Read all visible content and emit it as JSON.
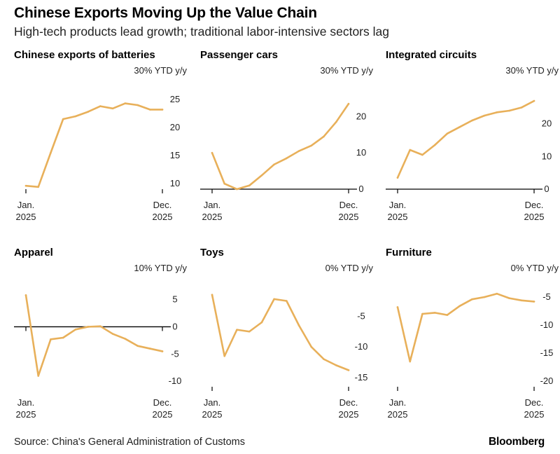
{
  "title": "Chinese Exports Moving Up the Value Chain",
  "subtitle": "High-tech products lead growth; traditional labor-intensive sectors lag",
  "source": "Source: China's General Administration of Customs",
  "brand": "Bloomberg",
  "colors": {
    "line": "#e8b05a",
    "axis": "#000000",
    "tick": "#000000"
  },
  "chart_data": [
    {
      "type": "line",
      "title": "Chinese exports of batteries",
      "ytd_label": "30% YTD y/y",
      "x_labels": [
        "Jan.\n2025",
        "Dec.\n2025"
      ],
      "x": [
        1,
        2,
        3,
        4,
        5,
        6,
        7,
        8,
        9,
        10,
        11,
        12
      ],
      "values": [
        9.6,
        9.4,
        15.5,
        21.5,
        22.0,
        22.8,
        23.8,
        23.4,
        24.3,
        24.0,
        23.2,
        23.2
      ],
      "yticks": [
        10,
        15,
        20,
        25
      ],
      "ylim": [
        9.0,
        26.5
      ],
      "baseline": null
    },
    {
      "type": "line",
      "title": "Passenger cars",
      "ytd_label": "30% YTD y/y",
      "x_labels": [
        "Jan.\n2025",
        "Dec.\n2025"
      ],
      "x": [
        1,
        2,
        3,
        4,
        5,
        6,
        7,
        8,
        9,
        10,
        11,
        12
      ],
      "values": [
        10.0,
        1.5,
        0.0,
        1.0,
        3.8,
        6.8,
        8.5,
        10.5,
        12.0,
        14.5,
        18.5,
        23.5
      ],
      "yticks": [
        0,
        10,
        20
      ],
      "ylim": [
        0,
        27
      ],
      "baseline": 0
    },
    {
      "type": "line",
      "title": "Integrated circuits",
      "ytd_label": "30% YTD y/y",
      "x_labels": [
        "Jan.\n2025",
        "Dec.\n2025"
      ],
      "x": [
        1,
        2,
        3,
        4,
        5,
        6,
        7,
        8,
        9,
        10,
        11,
        12
      ],
      "values": [
        3.5,
        12.0,
        10.5,
        13.5,
        17.0,
        19.0,
        21.0,
        22.5,
        23.5,
        24.0,
        25.0,
        27.0
      ],
      "yticks": [
        0,
        10,
        20
      ],
      "ylim": [
        0,
        30
      ],
      "baseline": 0
    },
    {
      "type": "line",
      "title": "Apparel",
      "ytd_label": "10% YTD y/y",
      "x_labels": [
        "Jan.\n2025",
        "Dec.\n2025"
      ],
      "x": [
        1,
        2,
        3,
        4,
        5,
        6,
        7,
        8,
        9,
        10,
        11,
        12
      ],
      "values": [
        5.8,
        -9.0,
        -2.3,
        -2.0,
        -0.5,
        0.0,
        0.1,
        -1.3,
        -2.2,
        -3.5,
        -4.0,
        -4.5
      ],
      "yticks": [
        -10,
        -5,
        0,
        5
      ],
      "ylim": [
        -11,
        7
      ],
      "baseline": 0
    },
    {
      "type": "line",
      "title": "Toys",
      "ytd_label": "0% YTD y/y",
      "x_labels": [
        "Jan.\n2025",
        "Dec.\n2025"
      ],
      "x": [
        1,
        2,
        3,
        4,
        5,
        6,
        7,
        8,
        9,
        10,
        11,
        12
      ],
      "values": [
        -1.5,
        -11.5,
        -7.2,
        -7.5,
        -6.0,
        -2.2,
        -2.5,
        -6.5,
        -10.0,
        -12.0,
        -13.0,
        -13.8
      ],
      "yticks": [
        -15,
        -10,
        -5
      ],
      "ylim": [
        -16.5,
        -0.5
      ],
      "baseline": null
    },
    {
      "type": "line",
      "title": "Furniture",
      "ytd_label": "0% YTD y/y",
      "x_labels": [
        "Jan.\n2025",
        "Dec.\n2025"
      ],
      "x": [
        1,
        2,
        3,
        4,
        5,
        6,
        7,
        8,
        9,
        10,
        11,
        12
      ],
      "values": [
        -6.8,
        -16.5,
        -8.0,
        -7.8,
        -8.2,
        -6.6,
        -5.4,
        -5.0,
        -4.4,
        -5.2,
        -5.6,
        -5.8
      ],
      "yticks": [
        -20,
        -15,
        -10,
        -5
      ],
      "ylim": [
        -21,
        -3.5
      ],
      "baseline": null
    }
  ]
}
